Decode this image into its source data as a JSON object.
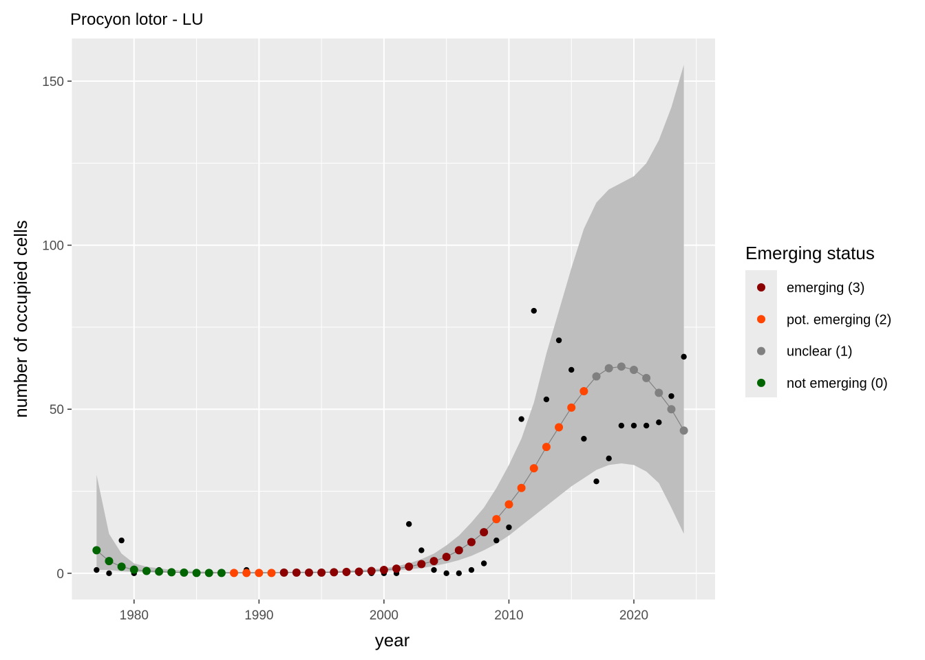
{
  "chart_data": {
    "type": "scatter",
    "title": "Procyon lotor - LU",
    "xlabel": "year",
    "ylabel": "number of occupied cells",
    "xlim": [
      1975,
      2026.5
    ],
    "ylim": [
      -8,
      163
    ],
    "x_ticks": [
      1980,
      1990,
      2000,
      2010,
      2020
    ],
    "y_ticks": [
      0,
      50,
      100,
      150
    ],
    "grid": true,
    "legend": {
      "title": "Emerging status",
      "position": "right",
      "entries": [
        {
          "key": "3",
          "label": "emerging (3)",
          "color": "#8B0000"
        },
        {
          "key": "2",
          "label": "pot. emerging (2)",
          "color": "#FF4500"
        },
        {
          "key": "1",
          "label": "unclear (1)",
          "color": "#808080"
        },
        {
          "key": "0",
          "label": "not emerging (0)",
          "color": "#006400"
        }
      ]
    },
    "observed": {
      "x": [
        1977,
        1978,
        1979,
        1980,
        1981,
        1982,
        1983,
        1984,
        1985,
        1986,
        1987,
        1988,
        1989,
        1990,
        1991,
        1992,
        1993,
        1994,
        1995,
        1996,
        1997,
        1998,
        1999,
        2000,
        2001,
        2002,
        2003,
        2004,
        2005,
        2006,
        2007,
        2008,
        2009,
        2010,
        2011,
        2012,
        2013,
        2014,
        2015,
        2016,
        2017,
        2018,
        2019,
        2020,
        2021,
        2022,
        2023,
        2024
      ],
      "y": [
        1,
        0,
        10,
        0,
        1,
        1,
        0,
        0,
        0,
        0,
        0,
        0,
        1,
        0,
        0,
        0,
        0,
        0,
        0,
        0,
        0,
        0,
        0,
        0,
        0,
        15,
        7,
        1,
        0,
        0,
        1,
        3,
        10,
        14,
        47,
        80,
        53,
        71,
        62,
        41,
        28,
        35,
        45,
        45,
        45,
        46,
        54,
        66
      ]
    },
    "fitted": {
      "x": [
        1977,
        1978,
        1979,
        1980,
        1981,
        1982,
        1983,
        1984,
        1985,
        1986,
        1987,
        1988,
        1989,
        1990,
        1991,
        1992,
        1993,
        1994,
        1995,
        1996,
        1997,
        1998,
        1999,
        2000,
        2001,
        2002,
        2003,
        2004,
        2005,
        2006,
        2007,
        2008,
        2009,
        2010,
        2011,
        2012,
        2013,
        2014,
        2015,
        2016,
        2017,
        2018,
        2019,
        2020,
        2021,
        2022,
        2023,
        2024
      ],
      "y": [
        7,
        3.7,
        2,
        1.1,
        0.7,
        0.5,
        0.3,
        0.2,
        0.1,
        0.1,
        0.1,
        0.1,
        0.1,
        0.1,
        0.1,
        0.2,
        0.2,
        0.2,
        0.2,
        0.3,
        0.4,
        0.5,
        0.7,
        1,
        1.4,
        2,
        2.8,
        3.7,
        5,
        7,
        9.5,
        12.5,
        16.5,
        21,
        26,
        32,
        38.5,
        44.5,
        50.5,
        55.5,
        60,
        62.5,
        63,
        62,
        59.5,
        55,
        50,
        43.5
      ],
      "status": [
        "0",
        "0",
        "0",
        "0",
        "0",
        "0",
        "0",
        "0",
        "0",
        "0",
        "0",
        "2",
        "2",
        "2",
        "2",
        "3",
        "3",
        "3",
        "3",
        "3",
        "3",
        "3",
        "3",
        "3",
        "3",
        "3",
        "3",
        "3",
        "3",
        "3",
        "3",
        "3",
        "2",
        "2",
        "2",
        "2",
        "2",
        "2",
        "2",
        "2",
        "1",
        "1",
        "1",
        "1",
        "1",
        "1",
        "1",
        "1"
      ]
    },
    "confidence_band": {
      "x": [
        1977,
        1978,
        1979,
        1980,
        1981,
        1982,
        1983,
        1984,
        1985,
        1986,
        1987,
        1988,
        1989,
        1990,
        1991,
        1992,
        1993,
        1994,
        1995,
        1996,
        1997,
        1998,
        1999,
        2000,
        2001,
        2002,
        2003,
        2004,
        2005,
        2006,
        2007,
        2008,
        2009,
        2010,
        2011,
        2012,
        2013,
        2014,
        2015,
        2016,
        2017,
        2018,
        2019,
        2020,
        2021,
        2022,
        2023,
        2024
      ],
      "lower": [
        1,
        1,
        0.6,
        0.4,
        0.3,
        0.2,
        0.1,
        0.1,
        0.05,
        0.05,
        0.05,
        0.05,
        0.05,
        0.05,
        0.05,
        0.1,
        0.1,
        0.1,
        0.1,
        0.15,
        0.2,
        0.3,
        0.4,
        0.6,
        0.9,
        1.2,
        1.6,
        2.2,
        3,
        4,
        5.3,
        7,
        9,
        11.5,
        14.5,
        17.5,
        20.5,
        23.5,
        26.5,
        29,
        31.5,
        33,
        33.5,
        33,
        31,
        27.5,
        20,
        12
      ],
      "upper": [
        30,
        12,
        6,
        3,
        2,
        1.5,
        1,
        0.8,
        0.6,
        0.5,
        0.4,
        0.4,
        0.4,
        0.4,
        0.4,
        0.4,
        0.5,
        0.5,
        0.6,
        0.7,
        0.8,
        1,
        1.2,
        1.5,
        2.1,
        3,
        4.3,
        6,
        8.5,
        11.5,
        15.5,
        20,
        26,
        33,
        41,
        52,
        67,
        80,
        93,
        105,
        113,
        117,
        119,
        121,
        125,
        132,
        142,
        155
      ]
    },
    "fit_line_color": "#808080",
    "band_color": "#BEBEBE",
    "panel_background": "#EBEBEB",
    "observed_color": "#000000"
  }
}
